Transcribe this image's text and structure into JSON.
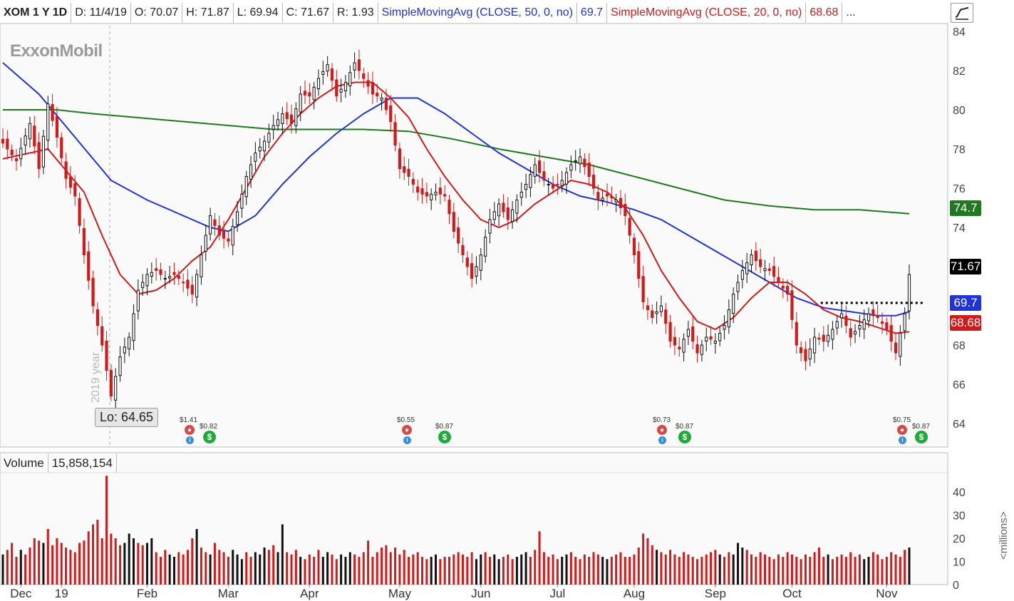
{
  "header": {
    "symbol": "XOM 1 Y 1D",
    "date": "D: 11/4/19",
    "open": "O: 70.07",
    "high": "H: 71.87",
    "low": "L: 69.94",
    "close": "C: 71.67",
    "range": "R: 1.93",
    "sma50_label": "SimpleMovingAvg (CLOSE, 50, 0, no)",
    "sma50_value": "69.7",
    "sma20_label": "SimpleMovingAvg (CLOSE, 20, 0, no)",
    "sma20_value": "68.68",
    "more": "..."
  },
  "logo": "ExxonMobil",
  "low_marker": "Lo: 64.65",
  "year_marker": "2019 year",
  "price_boxes": {
    "sma200": "74.7",
    "last": "71.67",
    "sma50": "69.7",
    "sma20": "68.68"
  },
  "volume": {
    "label": "Volume",
    "value": "15,858,154",
    "unit": "<millions>"
  },
  "dividends": [
    {
      "earn": "$1.41",
      "div": "$0.82"
    },
    {
      "earn": "$0.55",
      "div": "$0.87"
    },
    {
      "earn": "$0.73",
      "div": "$0.87"
    },
    {
      "earn": "$0.75",
      "div": "$0.87"
    }
  ],
  "colors": {
    "up": "#111111",
    "down": "#d11a1a",
    "sma20": "#d11a1a",
    "sma50": "#1f33d6",
    "sma200": "#1f7a1f",
    "box_sma200": "#1f7a1f",
    "box_last": "#000000",
    "box_sma50": "#1f33d6",
    "box_sma20": "#d11a1a"
  },
  "chart_data": {
    "type": "candlestick",
    "title": "XOM 1 Y 1D",
    "price_axis": {
      "ticks": [
        84,
        82,
        80,
        78,
        76,
        74,
        72,
        70,
        68,
        66,
        64
      ],
      "range": [
        62.8,
        84.4
      ]
    },
    "volume_axis": {
      "ticks": [
        40,
        30,
        20,
        10,
        0
      ],
      "range": [
        0,
        48
      ],
      "unit": "millions"
    },
    "x_labels": [
      "Dec",
      "19",
      "Feb",
      "Mar",
      "Apr",
      "May",
      "Jun",
      "Jul",
      "Aug",
      "Sep",
      "Oct",
      "Nov"
    ],
    "close_path": [
      [
        0,
        78.3
      ],
      [
        3,
        77.4
      ],
      [
        6,
        79.3
      ],
      [
        8,
        77.0
      ],
      [
        10,
        80.3
      ],
      [
        12,
        78.6
      ],
      [
        14,
        76.5
      ],
      [
        16,
        75.6
      ],
      [
        18,
        72.6
      ],
      [
        20,
        70.0
      ],
      [
        22,
        68.0
      ],
      [
        24,
        65.4
      ],
      [
        26,
        67.4
      ],
      [
        28,
        68.4
      ],
      [
        30,
        70.8
      ],
      [
        32,
        71.6
      ],
      [
        34,
        71.8
      ],
      [
        36,
        71.4
      ],
      [
        38,
        71.6
      ],
      [
        40,
        71.2
      ],
      [
        42,
        70.6
      ],
      [
        44,
        72.6
      ],
      [
        46,
        74.6
      ],
      [
        48,
        73.6
      ],
      [
        50,
        73.3
      ],
      [
        52,
        74.8
      ],
      [
        54,
        76.6
      ],
      [
        56,
        77.8
      ],
      [
        58,
        78.4
      ],
      [
        60,
        79.2
      ],
      [
        62,
        79.8
      ],
      [
        64,
        79.3
      ],
      [
        66,
        80.8
      ],
      [
        68,
        80.7
      ],
      [
        70,
        81.6
      ],
      [
        72,
        82.3
      ],
      [
        74,
        80.7
      ],
      [
        76,
        81.4
      ],
      [
        78,
        82.4
      ],
      [
        80,
        81.6
      ],
      [
        82,
        80.8
      ],
      [
        84,
        80.6
      ],
      [
        86,
        79.4
      ],
      [
        88,
        77.0
      ],
      [
        90,
        76.6
      ],
      [
        92,
        75.8
      ],
      [
        94,
        75.6
      ],
      [
        96,
        75.8
      ],
      [
        98,
        75.6
      ],
      [
        100,
        73.8
      ],
      [
        102,
        72.6
      ],
      [
        104,
        71.4
      ],
      [
        106,
        72.6
      ],
      [
        108,
        74.4
      ],
      [
        110,
        75.2
      ],
      [
        112,
        74.4
      ],
      [
        114,
        75.4
      ],
      [
        116,
        76.2
      ],
      [
        118,
        77.2
      ],
      [
        120,
        76.4
      ],
      [
        122,
        76.0
      ],
      [
        124,
        76.4
      ],
      [
        126,
        77.2
      ],
      [
        128,
        77.6
      ],
      [
        130,
        76.6
      ],
      [
        132,
        75.4
      ],
      [
        134,
        75.6
      ],
      [
        136,
        75.4
      ],
      [
        138,
        74.6
      ],
      [
        140,
        72.6
      ],
      [
        142,
        70.2
      ],
      [
        144,
        69.4
      ],
      [
        146,
        70.0
      ],
      [
        148,
        68.2
      ],
      [
        150,
        67.8
      ],
      [
        152,
        68.8
      ],
      [
        154,
        67.6
      ],
      [
        156,
        68.4
      ],
      [
        158,
        68.2
      ],
      [
        160,
        69.0
      ],
      [
        162,
        70.6
      ],
      [
        164,
        71.8
      ],
      [
        166,
        72.6
      ],
      [
        168,
        72.0
      ],
      [
        170,
        71.8
      ],
      [
        172,
        71.2
      ],
      [
        174,
        70.6
      ],
      [
        176,
        68.0
      ],
      [
        178,
        67.2
      ],
      [
        180,
        68.4
      ],
      [
        182,
        68.2
      ],
      [
        184,
        68.8
      ],
      [
        186,
        69.6
      ],
      [
        188,
        68.4
      ],
      [
        190,
        69.0
      ],
      [
        192,
        69.6
      ],
      [
        194,
        69.4
      ],
      [
        196,
        68.8
      ],
      [
        198,
        67.6
      ],
      [
        200,
        69.6
      ],
      [
        201,
        71.6
      ]
    ],
    "candles_count": 202,
    "sma20": [
      [
        0,
        77.5
      ],
      [
        10,
        78.0
      ],
      [
        18,
        75.8
      ],
      [
        22,
        73.6
      ],
      [
        26,
        71.6
      ],
      [
        30,
        70.6
      ],
      [
        34,
        70.8
      ],
      [
        38,
        71.4
      ],
      [
        42,
        72.3
      ],
      [
        46,
        73.0
      ],
      [
        50,
        74.4
      ],
      [
        54,
        76.0
      ],
      [
        58,
        77.6
      ],
      [
        62,
        78.8
      ],
      [
        66,
        79.8
      ],
      [
        70,
        80.6
      ],
      [
        74,
        81.2
      ],
      [
        78,
        81.4
      ],
      [
        82,
        81.4
      ],
      [
        86,
        80.6
      ],
      [
        90,
        79.6
      ],
      [
        94,
        78.0
      ],
      [
        98,
        76.6
      ],
      [
        102,
        75.4
      ],
      [
        106,
        74.4
      ],
      [
        110,
        74.0
      ],
      [
        114,
        74.4
      ],
      [
        118,
        75.2
      ],
      [
        122,
        75.8
      ],
      [
        126,
        76.4
      ],
      [
        130,
        76.2
      ],
      [
        134,
        75.8
      ],
      [
        138,
        75.0
      ],
      [
        142,
        73.6
      ],
      [
        146,
        71.8
      ],
      [
        150,
        70.4
      ],
      [
        154,
        69.2
      ],
      [
        158,
        68.8
      ],
      [
        162,
        69.4
      ],
      [
        166,
        70.4
      ],
      [
        170,
        71.2
      ],
      [
        174,
        71.2
      ],
      [
        178,
        70.6
      ],
      [
        182,
        69.8
      ],
      [
        186,
        69.4
      ],
      [
        190,
        69.2
      ],
      [
        194,
        68.9
      ],
      [
        198,
        68.6
      ],
      [
        201,
        68.68
      ]
    ],
    "sma50": [
      [
        0,
        82.4
      ],
      [
        8,
        80.8
      ],
      [
        16,
        78.6
      ],
      [
        24,
        76.4
      ],
      [
        32,
        75.4
      ],
      [
        40,
        74.6
      ],
      [
        46,
        74.0
      ],
      [
        50,
        73.8
      ],
      [
        56,
        74.6
      ],
      [
        62,
        76.2
      ],
      [
        68,
        77.6
      ],
      [
        74,
        78.8
      ],
      [
        80,
        79.8
      ],
      [
        86,
        80.6
      ],
      [
        92,
        80.6
      ],
      [
        98,
        79.8
      ],
      [
        104,
        78.8
      ],
      [
        110,
        77.8
      ],
      [
        116,
        77.0
      ],
      [
        122,
        76.2
      ],
      [
        128,
        75.6
      ],
      [
        134,
        75.3
      ],
      [
        140,
        74.9
      ],
      [
        146,
        74.4
      ],
      [
        152,
        73.6
      ],
      [
        158,
        72.8
      ],
      [
        164,
        72.0
      ],
      [
        170,
        71.2
      ],
      [
        176,
        70.4
      ],
      [
        182,
        69.9
      ],
      [
        188,
        69.7
      ],
      [
        194,
        69.5
      ],
      [
        198,
        69.5
      ],
      [
        201,
        69.7
      ]
    ],
    "sma200": [
      [
        0,
        80.0
      ],
      [
        12,
        80.0
      ],
      [
        20,
        79.8
      ],
      [
        30,
        79.6
      ],
      [
        40,
        79.4
      ],
      [
        50,
        79.2
      ],
      [
        60,
        79.0
      ],
      [
        70,
        79.0
      ],
      [
        80,
        79.0
      ],
      [
        90,
        78.9
      ],
      [
        100,
        78.5
      ],
      [
        110,
        78.0
      ],
      [
        120,
        77.6
      ],
      [
        130,
        77.2
      ],
      [
        140,
        76.6
      ],
      [
        150,
        76.0
      ],
      [
        160,
        75.4
      ],
      [
        170,
        75.1
      ],
      [
        180,
        74.9
      ],
      [
        190,
        74.9
      ],
      [
        201,
        74.7
      ]
    ],
    "resistance": {
      "value": 70.15,
      "from_index": 182,
      "to_index": 201
    },
    "volume_bars": [
      13,
      15,
      18,
      12,
      15,
      13,
      16,
      20,
      19,
      18,
      24,
      17,
      20,
      18,
      16,
      15,
      14,
      18,
      19,
      23,
      26,
      28,
      20,
      47,
      22,
      20,
      17,
      18,
      22,
      20,
      18,
      17,
      18,
      20,
      14,
      12,
      15,
      13,
      12,
      14,
      13,
      15,
      20,
      24,
      16,
      14,
      13,
      18,
      15,
      14,
      12,
      15,
      13,
      11,
      14,
      12,
      14,
      13,
      16,
      15,
      17,
      14,
      26,
      14,
      13,
      15,
      12,
      11,
      13,
      12,
      15,
      12,
      14,
      13,
      11,
      13,
      12,
      14,
      13,
      12,
      14,
      19,
      12,
      14,
      16,
      17,
      14,
      16,
      13,
      15,
      12,
      13,
      14,
      12,
      11,
      12,
      13,
      11,
      12,
      12,
      13,
      14,
      13,
      12,
      14,
      11,
      13,
      14,
      12,
      13,
      11,
      12,
      13,
      11,
      12,
      13,
      14,
      12,
      15,
      23,
      14,
      12,
      13,
      11,
      12,
      13,
      14,
      12,
      11,
      13,
      12,
      14,
      13,
      12,
      11,
      12,
      13,
      14,
      12,
      12,
      13,
      16,
      22,
      20,
      17,
      15,
      14,
      13,
      15,
      13,
      12,
      14,
      13,
      12,
      11,
      12,
      13,
      14,
      15,
      13,
      12,
      14,
      13,
      18,
      16,
      15,
      13,
      12,
      14,
      13,
      12,
      11,
      13,
      12,
      14,
      13,
      12,
      11,
      13,
      12,
      14,
      16,
      12,
      13,
      11,
      12,
      13,
      12,
      14,
      12,
      13,
      11,
      12,
      14,
      13,
      11,
      12,
      14,
      13,
      12,
      15,
      16
    ]
  }
}
